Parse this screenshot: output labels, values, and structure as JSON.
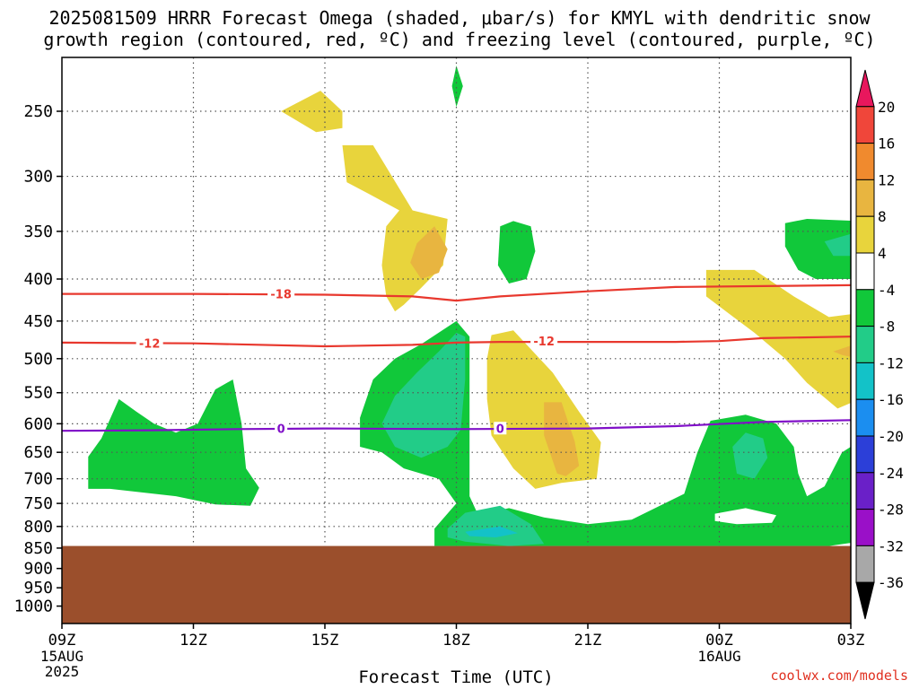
{
  "title_line1": "2025081509 HRRR Forecast Omega (shaded, μbar/s) for KMYL with dendritic snow",
  "title_line2": "growth region (contoured, red, ºC) and freezing level (contoured, purple, ºC)",
  "watermark": "coolwx.com/models",
  "chart_data": {
    "type": "contour-time-height",
    "title": "2025081509 HRRR Forecast Omega (shaded, μbar/s) for KMYL with dendritic snow growth region (contoured, red, ºC) and freezing level (contoured, purple, ºC)",
    "xlabel": "Forecast Time (UTC)",
    "ylabel": "",
    "x_ticks": [
      {
        "hours": 0,
        "label": "09Z",
        "sub": [
          "15AUG",
          "2025"
        ]
      },
      {
        "hours": 3,
        "label": "12Z",
        "sub": []
      },
      {
        "hours": 6,
        "label": "15Z",
        "sub": []
      },
      {
        "hours": 9,
        "label": "18Z",
        "sub": []
      },
      {
        "hours": 12,
        "label": "21Z",
        "sub": []
      },
      {
        "hours": 15,
        "label": "00Z",
        "sub": [
          "16AUG"
        ]
      },
      {
        "hours": 18,
        "label": "03Z",
        "sub": []
      }
    ],
    "xlim_hours": [
      0,
      18
    ],
    "y_ticks": [
      250,
      300,
      350,
      400,
      450,
      500,
      550,
      600,
      650,
      700,
      750,
      800,
      850,
      900,
      950,
      1000
    ],
    "y_gridlines": [
      250,
      300,
      350,
      400,
      450,
      500,
      550,
      600,
      650,
      700,
      750,
      800
    ],
    "ylim_hPa": [
      1050,
      200
    ],
    "ground_level_hPa": 845,
    "grid": true,
    "colorbar": {
      "labels": [
        "20",
        "16",
        "12",
        "8",
        "4",
        "-4",
        "-8",
        "-12",
        "-16",
        "-20",
        "-24",
        "-28",
        "-32",
        "-36"
      ],
      "bins": [
        {
          "color": "#e8175d"
        },
        {
          "color": "#f0463a"
        },
        {
          "color": "#f08a2e"
        },
        {
          "color": "#e8b540"
        },
        {
          "color": "#e8d43c"
        },
        {
          "color": "#ffffff"
        },
        {
          "color": "#11c83a"
        },
        {
          "color": "#22cc88"
        },
        {
          "color": "#13c2c8"
        },
        {
          "color": "#1b8ef0"
        },
        {
          "color": "#2c3fd8"
        },
        {
          "color": "#6a20c8"
        },
        {
          "color": "#9a10c8"
        },
        {
          "color": "#a8a8a8"
        },
        {
          "color": "#000000"
        }
      ]
    },
    "contours": [
      {
        "label": "-18",
        "color": "#e8382e",
        "points": [
          [
            0,
            417
          ],
          [
            3,
            417
          ],
          [
            6,
            418
          ],
          [
            8,
            420
          ],
          [
            9,
            425
          ],
          [
            10,
            420
          ],
          [
            12,
            414
          ],
          [
            14,
            409
          ],
          [
            16,
            408
          ],
          [
            18,
            407
          ]
        ]
      },
      {
        "label": "-12",
        "color": "#e8382e",
        "points": [
          [
            0,
            478
          ],
          [
            3,
            479
          ],
          [
            6,
            483
          ],
          [
            8,
            481
          ],
          [
            9,
            478
          ],
          [
            10,
            477
          ],
          [
            12,
            477
          ],
          [
            14,
            477
          ],
          [
            15,
            476
          ],
          [
            16,
            472
          ],
          [
            18,
            470
          ]
        ]
      },
      {
        "label": "0",
        "color": "#8010c8",
        "points": [
          [
            0,
            612
          ],
          [
            2,
            611
          ],
          [
            4,
            609
          ],
          [
            6,
            608
          ],
          [
            9,
            609
          ],
          [
            12,
            608
          ],
          [
            14,
            604
          ],
          [
            16,
            597
          ],
          [
            18,
            594
          ]
        ]
      }
    ],
    "contour_label_positions": [
      {
        "label": "-18",
        "hours": 5.0,
        "hPa": 418
      },
      {
        "label": "-12",
        "hours": 2.0,
        "hPa": 480
      },
      {
        "label": "-12",
        "hours": 11.0,
        "hPa": 477
      },
      {
        "label": "0",
        "hours": 5.0,
        "hPa": 609
      },
      {
        "label": "0",
        "hours": 10.0,
        "hPa": 609
      }
    ],
    "shaded_regions": [
      {
        "color": "#e8d43c",
        "points": [
          [
            5,
            250
          ],
          [
            5.9,
            236
          ],
          [
            6.4,
            250
          ],
          [
            6.4,
            262
          ],
          [
            5.8,
            265
          ]
        ]
      },
      {
        "color": "#e8d43c",
        "points": [
          [
            6.4,
            275
          ],
          [
            7.1,
            275
          ],
          [
            8,
            330
          ],
          [
            8.8,
            338
          ],
          [
            8.7,
            385
          ],
          [
            8.2,
            410
          ],
          [
            7.8,
            430
          ],
          [
            7.6,
            438
          ],
          [
            7.4,
            420
          ],
          [
            7.3,
            385
          ],
          [
            7.4,
            345
          ],
          [
            7.7,
            330
          ],
          [
            7.0,
            315
          ],
          [
            6.5,
            305
          ]
        ]
      },
      {
        "color": "#e8b540",
        "points": [
          [
            8.1,
            362
          ],
          [
            8.5,
            345
          ],
          [
            8.8,
            368
          ],
          [
            8.6,
            393
          ],
          [
            8.2,
            400
          ],
          [
            7.95,
            382
          ]
        ]
      },
      {
        "color": "#e8d43c",
        "points": [
          [
            9.8,
            468
          ],
          [
            10.3,
            462
          ],
          [
            11.2,
            520
          ],
          [
            11.8,
            580
          ],
          [
            12.3,
            632
          ],
          [
            12.2,
            700
          ],
          [
            11.4,
            708
          ],
          [
            10.8,
            720
          ],
          [
            10.3,
            680
          ],
          [
            9.8,
            620
          ],
          [
            9.7,
            560
          ],
          [
            9.7,
            500
          ]
        ]
      },
      {
        "color": "#e8b540",
        "points": [
          [
            11.0,
            565
          ],
          [
            11.4,
            565
          ],
          [
            11.7,
            630
          ],
          [
            11.8,
            675
          ],
          [
            11.5,
            695
          ],
          [
            11.3,
            690
          ],
          [
            11.0,
            620
          ]
        ]
      },
      {
        "color": "#e8d43c",
        "points": [
          [
            14.7,
            390
          ],
          [
            15.8,
            390
          ],
          [
            16.7,
            420
          ],
          [
            17.5,
            445
          ],
          [
            18.2,
            440
          ],
          [
            18.2,
            560
          ],
          [
            17.7,
            575
          ],
          [
            17.0,
            535
          ],
          [
            16.5,
            500
          ],
          [
            15.8,
            465
          ],
          [
            15.2,
            440
          ],
          [
            14.7,
            420
          ]
        ]
      },
      {
        "color": "#e8b540",
        "points": [
          [
            17.6,
            490
          ],
          [
            18.2,
            478
          ],
          [
            18.2,
            500
          ],
          [
            17.8,
            495
          ]
        ]
      },
      {
        "color": "#11c83a",
        "points": [
          [
            8.9,
            233
          ],
          [
            9.0,
            220
          ],
          [
            9.15,
            233
          ],
          [
            9.0,
            247
          ]
        ]
      },
      {
        "color": "#11c83a",
        "points": [
          [
            10.0,
            345
          ],
          [
            10.3,
            340
          ],
          [
            10.7,
            345
          ],
          [
            10.8,
            370
          ],
          [
            10.6,
            400
          ],
          [
            10.2,
            405
          ],
          [
            9.95,
            385
          ]
        ]
      },
      {
        "color": "#11c83a",
        "points": [
          [
            16.5,
            342
          ],
          [
            17.0,
            338
          ],
          [
            18.2,
            340
          ],
          [
            18.2,
            400
          ],
          [
            17.2,
            400
          ],
          [
            16.8,
            390
          ],
          [
            16.5,
            365
          ]
        ]
      },
      {
        "color": "#22cc88",
        "points": [
          [
            17.4,
            360
          ],
          [
            18.2,
            350
          ],
          [
            18.2,
            375
          ],
          [
            17.6,
            375
          ]
        ]
      },
      {
        "color": "#11c83a",
        "points": [
          [
            0.6,
            658
          ],
          [
            0.9,
            625
          ],
          [
            1.3,
            560
          ],
          [
            1.7,
            580
          ],
          [
            2.1,
            600
          ],
          [
            2.6,
            615
          ],
          [
            3.1,
            600
          ],
          [
            3.5,
            545
          ],
          [
            3.9,
            530
          ],
          [
            4.1,
            600
          ],
          [
            4.2,
            680
          ],
          [
            4.5,
            718
          ],
          [
            4.3,
            755
          ],
          [
            3.5,
            752
          ],
          [
            2.6,
            735
          ],
          [
            1.1,
            720
          ],
          [
            0.6,
            720
          ],
          [
            0.6,
            700
          ]
        ]
      },
      {
        "color": "#11c83a",
        "points": [
          [
            6.8,
            640
          ],
          [
            6.8,
            590
          ],
          [
            7.1,
            530
          ],
          [
            7.6,
            500
          ],
          [
            8.2,
            480
          ],
          [
            9.0,
            450
          ],
          [
            9.3,
            470
          ],
          [
            9.3,
            620
          ],
          [
            9.3,
            735
          ],
          [
            9.5,
            775
          ],
          [
            10.2,
            760
          ],
          [
            11.0,
            780
          ],
          [
            12.0,
            795
          ],
          [
            13.0,
            785
          ],
          [
            14.2,
            730
          ],
          [
            14.5,
            650
          ],
          [
            14.8,
            595
          ],
          [
            15.6,
            585
          ],
          [
            16.3,
            600
          ],
          [
            16.7,
            640
          ],
          [
            16.8,
            690
          ],
          [
            17.0,
            735
          ],
          [
            17.4,
            715
          ],
          [
            17.8,
            650
          ],
          [
            18.2,
            630
          ],
          [
            18.2,
            835
          ],
          [
            17.5,
            845
          ],
          [
            16.3,
            845
          ],
          [
            14.5,
            845
          ],
          [
            12.0,
            845
          ],
          [
            10.5,
            845
          ],
          [
            8.5,
            845
          ],
          [
            8.5,
            805
          ],
          [
            9.0,
            750
          ],
          [
            8.6,
            700
          ],
          [
            7.8,
            680
          ],
          [
            7.3,
            650
          ]
        ]
      },
      {
        "color": "#22cc88",
        "points": [
          [
            7.3,
            600
          ],
          [
            7.6,
            555
          ],
          [
            8.1,
            520
          ],
          [
            8.6,
            490
          ],
          [
            9.0,
            465
          ],
          [
            9.2,
            470
          ],
          [
            9.2,
            530
          ],
          [
            9.1,
            610
          ],
          [
            8.8,
            640
          ],
          [
            8.2,
            660
          ],
          [
            7.6,
            640
          ]
        ]
      },
      {
        "color": "#22cc88",
        "points": [
          [
            8.8,
            805
          ],
          [
            9.2,
            770
          ],
          [
            10.0,
            755
          ],
          [
            10.7,
            795
          ],
          [
            11.0,
            840
          ],
          [
            10.2,
            845
          ],
          [
            9.2,
            835
          ],
          [
            8.8,
            825
          ]
        ]
      },
      {
        "color": "#13c2c8",
        "points": [
          [
            9.2,
            812
          ],
          [
            10.0,
            800
          ],
          [
            10.4,
            815
          ],
          [
            9.9,
            825
          ],
          [
            9.3,
            822
          ]
        ]
      },
      {
        "color": "#ffffff",
        "points": [
          [
            14.9,
            772
          ],
          [
            15.6,
            760
          ],
          [
            16.3,
            775
          ],
          [
            16.2,
            792
          ],
          [
            15.4,
            795
          ],
          [
            14.9,
            788
          ]
        ]
      },
      {
        "color": "#22cc88",
        "points": [
          [
            15.3,
            640
          ],
          [
            15.6,
            615
          ],
          [
            16.0,
            625
          ],
          [
            16.1,
            660
          ],
          [
            15.8,
            700
          ],
          [
            15.4,
            690
          ]
        ]
      }
    ],
    "ground_color": "#9b4f2c"
  },
  "x_axis_title": "Forecast Time (UTC)"
}
